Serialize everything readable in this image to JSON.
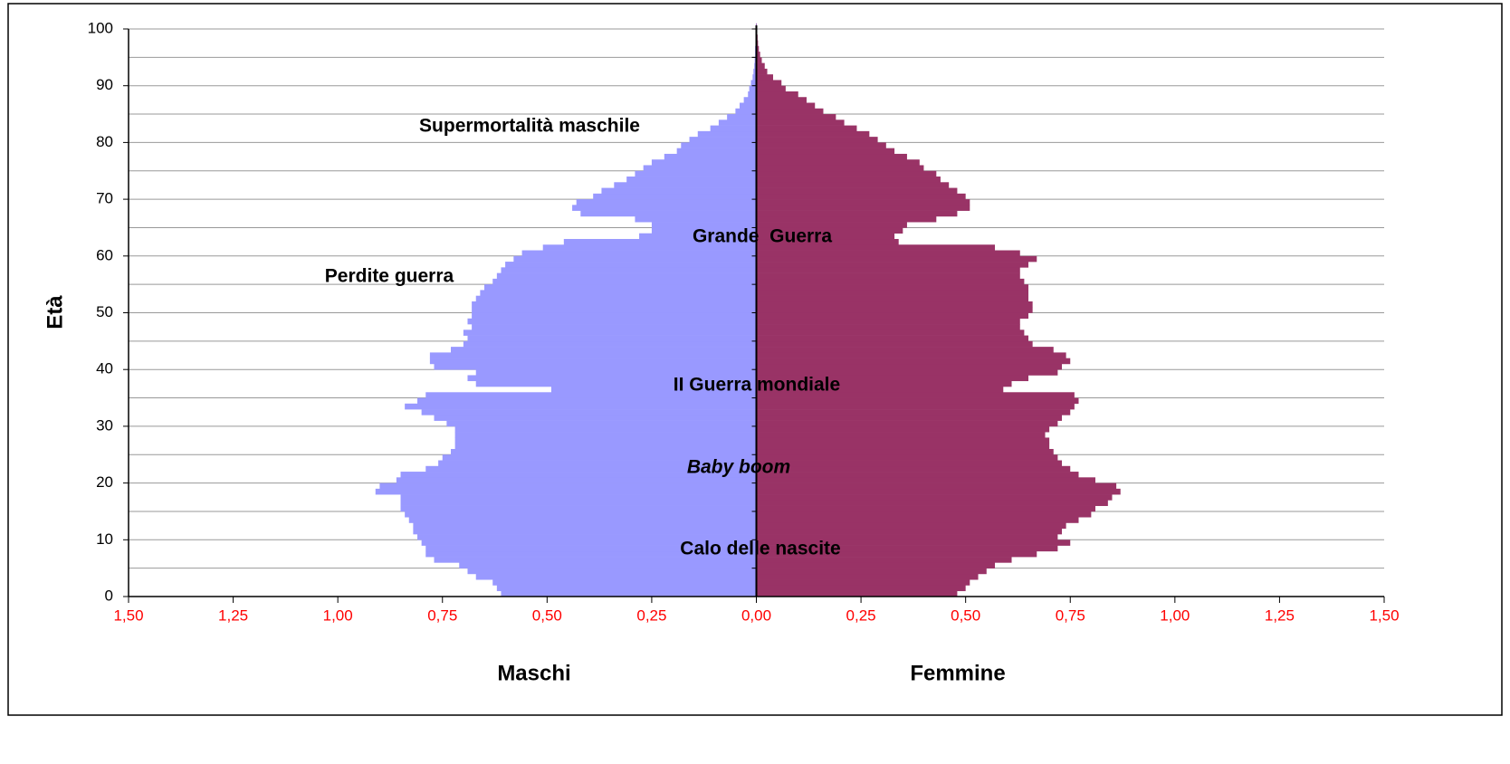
{
  "chart_data": {
    "type": "pyramid",
    "y_label": "Età",
    "annotations": [
      "Supermortalità maschile",
      "Grande  Guerra",
      "Perdite guerra",
      "II Guerra mondiale",
      "Baby boom",
      "Calo delle nascite"
    ],
    "y": [
      0,
      1,
      2,
      3,
      4,
      5,
      6,
      7,
      8,
      9,
      10,
      11,
      12,
      13,
      14,
      15,
      16,
      17,
      18,
      19,
      20,
      21,
      22,
      23,
      24,
      25,
      26,
      27,
      28,
      29,
      30,
      31,
      32,
      33,
      34,
      35,
      36,
      37,
      38,
      39,
      40,
      41,
      42,
      43,
      44,
      45,
      46,
      47,
      48,
      49,
      50,
      51,
      52,
      53,
      54,
      55,
      56,
      57,
      58,
      59,
      60,
      61,
      62,
      63,
      64,
      65,
      66,
      67,
      68,
      69,
      70,
      71,
      72,
      73,
      74,
      75,
      76,
      77,
      78,
      79,
      80,
      81,
      82,
      83,
      84,
      85,
      86,
      87,
      88,
      89,
      90,
      91,
      92,
      93,
      94,
      95,
      96,
      97,
      98,
      99,
      100
    ],
    "series": [
      {
        "name": "Maschi",
        "side": "left",
        "color": "#9999ff",
        "values": [
          0.61,
          0.62,
          0.63,
          0.67,
          0.69,
          0.71,
          0.77,
          0.79,
          0.79,
          0.8,
          0.81,
          0.82,
          0.82,
          0.83,
          0.84,
          0.85,
          0.85,
          0.85,
          0.91,
          0.9,
          0.86,
          0.85,
          0.79,
          0.76,
          0.75,
          0.73,
          0.72,
          0.72,
          0.72,
          0.72,
          0.74,
          0.77,
          0.8,
          0.84,
          0.81,
          0.79,
          0.49,
          0.67,
          0.69,
          0.67,
          0.77,
          0.78,
          0.78,
          0.73,
          0.7,
          0.69,
          0.7,
          0.68,
          0.69,
          0.68,
          0.68,
          0.68,
          0.67,
          0.66,
          0.65,
          0.63,
          0.62,
          0.61,
          0.6,
          0.58,
          0.56,
          0.51,
          0.46,
          0.28,
          0.25,
          0.25,
          0.29,
          0.42,
          0.44,
          0.43,
          0.39,
          0.37,
          0.34,
          0.31,
          0.29,
          0.27,
          0.25,
          0.22,
          0.19,
          0.18,
          0.16,
          0.14,
          0.11,
          0.09,
          0.07,
          0.05,
          0.04,
          0.03,
          0.02,
          0.017,
          0.013,
          0.009,
          0.007,
          0.005,
          0.004,
          0.003,
          0.003,
          0.002,
          0.002,
          0.001,
          0.001
        ]
      },
      {
        "name": "Femmine",
        "side": "right",
        "color": "#993366",
        "values": [
          0.48,
          0.5,
          0.51,
          0.53,
          0.55,
          0.57,
          0.61,
          0.67,
          0.72,
          0.75,
          0.72,
          0.73,
          0.74,
          0.77,
          0.8,
          0.81,
          0.84,
          0.85,
          0.87,
          0.86,
          0.81,
          0.77,
          0.75,
          0.73,
          0.72,
          0.71,
          0.7,
          0.7,
          0.69,
          0.7,
          0.72,
          0.73,
          0.75,
          0.76,
          0.77,
          0.76,
          0.59,
          0.61,
          0.65,
          0.72,
          0.73,
          0.75,
          0.74,
          0.71,
          0.66,
          0.65,
          0.64,
          0.63,
          0.63,
          0.65,
          0.66,
          0.66,
          0.65,
          0.65,
          0.65,
          0.64,
          0.63,
          0.63,
          0.65,
          0.67,
          0.63,
          0.57,
          0.34,
          0.33,
          0.35,
          0.36,
          0.43,
          0.48,
          0.51,
          0.51,
          0.5,
          0.48,
          0.46,
          0.44,
          0.43,
          0.4,
          0.39,
          0.36,
          0.33,
          0.31,
          0.29,
          0.27,
          0.24,
          0.21,
          0.19,
          0.16,
          0.14,
          0.12,
          0.1,
          0.07,
          0.06,
          0.04,
          0.026,
          0.02,
          0.013,
          0.009,
          0.006,
          0.004,
          0.003,
          0.002,
          0.001
        ]
      }
    ],
    "ylim": [
      0,
      100
    ],
    "yticks": [
      0,
      10,
      20,
      30,
      40,
      50,
      60,
      70,
      80,
      90,
      100
    ],
    "ygrid": [
      0,
      5,
      10,
      15,
      20,
      25,
      30,
      35,
      40,
      45,
      50,
      55,
      60,
      65,
      70,
      75,
      80,
      85,
      90,
      95,
      100
    ],
    "xlim": [
      -1.5,
      1.5
    ],
    "xticks": [
      {
        "value": -1.5,
        "label": "1,50"
      },
      {
        "value": -1.25,
        "label": "1,25"
      },
      {
        "value": -1,
        "label": "1,00"
      },
      {
        "value": -0.75,
        "label": "0,75"
      },
      {
        "value": -0.5,
        "label": "0,50"
      },
      {
        "value": -0.25,
        "label": "0,25"
      },
      {
        "value": 0,
        "label": "0,00"
      },
      {
        "value": 0.25,
        "label": "0,25"
      },
      {
        "value": 0.5,
        "label": "0,50"
      },
      {
        "value": 0.75,
        "label": "0,75"
      },
      {
        "value": 1,
        "label": "1,00"
      },
      {
        "value": 1.25,
        "label": "1,25"
      },
      {
        "value": 1.5,
        "label": "1,50"
      }
    ],
    "grid": true
  }
}
